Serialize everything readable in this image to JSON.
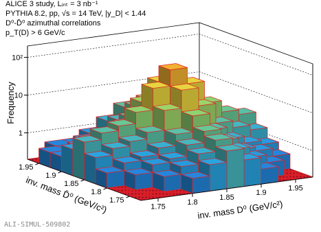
{
  "chart_data": {
    "type": "lego",
    "annotations": [
      "ALICE 3 study, Lᵢₙₜ = 3 nb⁻¹",
      "PYTHIA 8.2, pp, √s = 14 TeV, |y_D| < 1.44",
      "D⁰-D̄⁰ azimuthal correlations",
      "p_T(D) > 6 GeV/c"
    ],
    "watermark": "ALI-SIMUL-509802",
    "xlabel": "inv. mass D⁰ (GeV/c²)",
    "ylabel": "inv. mass D̄⁰ (GeV/c²)",
    "zlabel": "Frequency",
    "x_bins": [
      1.725,
      1.75,
      1.775,
      1.8,
      1.825,
      1.85,
      1.875,
      1.9,
      1.925,
      1.95,
      1.975
    ],
    "y_bins": [
      1.725,
      1.75,
      1.775,
      1.8,
      1.825,
      1.85,
      1.875,
      1.9,
      1.925,
      1.95,
      1.975
    ],
    "z": [
      [
        0,
        0,
        0,
        0.5,
        1,
        2,
        1,
        0.5,
        0,
        0
      ],
      [
        0,
        0,
        0.5,
        0.8,
        1.5,
        3,
        1.5,
        0.8,
        0.5,
        0
      ],
      [
        0,
        0.5,
        0.8,
        1,
        2,
        4,
        2,
        1,
        0.8,
        0.5
      ],
      [
        0.5,
        0.8,
        1,
        1.5,
        3,
        8,
        3,
        1.5,
        1,
        0.8
      ],
      [
        1,
        1.5,
        2,
        3,
        10,
        30,
        10,
        3,
        2,
        1.5
      ],
      [
        2,
        3,
        4,
        8,
        30,
        80,
        30,
        8,
        4,
        3
      ],
      [
        1,
        1.5,
        2,
        3,
        10,
        30,
        10,
        3,
        2,
        1.5
      ],
      [
        0.5,
        0.8,
        1,
        1.5,
        3,
        8,
        3,
        1.5,
        1,
        0.8
      ],
      [
        0.5,
        0.5,
        0.8,
        1,
        2,
        4,
        2,
        1,
        0.8,
        0.5
      ],
      [
        0,
        0.5,
        0.5,
        0.8,
        1.5,
        3,
        1.5,
        0.8,
        0.5,
        0
      ]
    ],
    "xlim": [
      1.725,
      1.975
    ],
    "ylim": [
      1.725,
      1.975
    ],
    "zlim": [
      0.2,
      200
    ],
    "xticks": [
      1.75,
      1.8,
      1.85,
      1.9,
      1.95
    ],
    "yticks": [
      1.75,
      1.8,
      1.85,
      1.9,
      1.95
    ],
    "zticks": [
      1,
      10,
      {
        "value": 100,
        "label": "10²"
      }
    ],
    "zscale": "log",
    "grid": true,
    "palette": [
      "#1f5fd6",
      "#2aa9e0",
      "#7fd27a",
      "#f2d43a",
      "#f08a2a"
    ],
    "edge_color": "#e02020",
    "floor_color": "#d81e2a"
  }
}
